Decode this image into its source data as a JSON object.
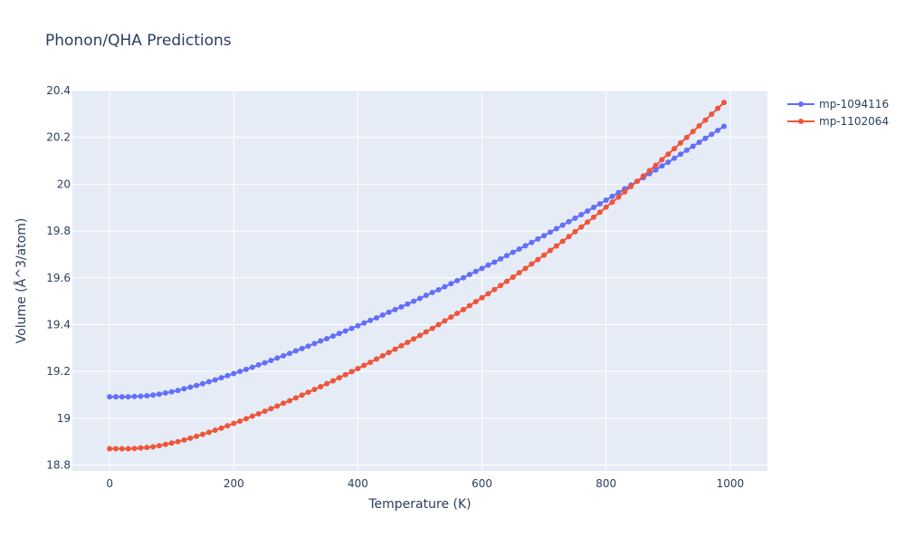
{
  "chart_data": {
    "type": "line",
    "title": "Phonon/QHA Predictions",
    "xlabel": "Temperature (K)",
    "ylabel": "Volume (Å^3/atom)",
    "xlim": [
      -60,
      1060
    ],
    "ylim": [
      18.775,
      20.4
    ],
    "xticks": [
      0,
      200,
      400,
      600,
      800,
      1000
    ],
    "xtick_labels": [
      "0",
      "200",
      "400",
      "600",
      "800",
      "1000"
    ],
    "yticks": [
      18.8,
      19.0,
      19.2,
      19.4,
      19.6,
      19.8,
      20.0,
      20.2,
      20.4
    ],
    "ytick_labels": [
      "18.8",
      "19",
      "19.2",
      "19.4",
      "19.6",
      "19.8",
      "20",
      "20.2",
      "20.4"
    ],
    "grid": true,
    "legend_position": "top-right",
    "x": [
      0,
      10,
      20,
      30,
      40,
      50,
      60,
      70,
      80,
      90,
      100,
      110,
      120,
      130,
      140,
      150,
      160,
      170,
      180,
      190,
      200,
      210,
      220,
      230,
      240,
      250,
      260,
      270,
      280,
      290,
      300,
      310,
      320,
      330,
      340,
      350,
      360,
      370,
      380,
      390,
      400,
      410,
      420,
      430,
      440,
      450,
      460,
      470,
      480,
      490,
      500,
      510,
      520,
      530,
      540,
      550,
      560,
      570,
      580,
      590,
      600,
      610,
      620,
      630,
      640,
      650,
      660,
      670,
      680,
      690,
      700,
      710,
      720,
      730,
      740,
      750,
      760,
      770,
      780,
      790,
      800,
      810,
      820,
      830,
      840,
      850,
      860,
      870,
      880,
      890,
      900,
      910,
      920,
      930,
      940,
      950,
      960,
      970,
      980,
      990
    ],
    "series": [
      {
        "name": "mp-1094116",
        "color": "#636efa",
        "values": [
          19.092,
          19.092,
          19.092,
          19.092,
          19.093,
          19.094,
          19.096,
          19.099,
          19.103,
          19.108,
          19.113,
          19.119,
          19.126,
          19.133,
          19.14,
          19.148,
          19.156,
          19.164,
          19.173,
          19.182,
          19.191,
          19.2,
          19.209,
          19.218,
          19.228,
          19.237,
          19.247,
          19.257,
          19.267,
          19.277,
          19.288,
          19.298,
          19.308,
          19.319,
          19.33,
          19.34,
          19.351,
          19.362,
          19.373,
          19.384,
          19.395,
          19.407,
          19.418,
          19.429,
          19.441,
          19.453,
          19.464,
          19.476,
          19.488,
          19.5,
          19.512,
          19.525,
          19.537,
          19.549,
          19.562,
          19.575,
          19.588,
          19.6,
          19.614,
          19.627,
          19.64,
          19.654,
          19.667,
          19.681,
          19.695,
          19.709,
          19.723,
          19.737,
          19.751,
          19.766,
          19.78,
          19.795,
          19.81,
          19.825,
          19.84,
          19.855,
          19.87,
          19.885,
          19.901,
          19.916,
          19.932,
          19.948,
          19.964,
          19.98,
          19.996,
          20.012,
          20.028,
          20.045,
          20.061,
          20.078,
          20.094,
          20.111,
          20.128,
          20.145,
          20.162,
          20.179,
          20.196,
          20.213,
          20.23,
          20.247
        ]
      },
      {
        "name": "mp-1102064",
        "color": "#ef553b",
        "values": [
          18.87,
          18.87,
          18.87,
          18.87,
          18.871,
          18.873,
          18.875,
          18.878,
          18.883,
          18.888,
          18.894,
          18.9,
          18.907,
          18.915,
          18.923,
          18.931,
          18.94,
          18.949,
          18.958,
          18.968,
          18.978,
          18.988,
          18.998,
          19.009,
          19.019,
          19.03,
          19.041,
          19.052,
          19.064,
          19.075,
          19.087,
          19.099,
          19.111,
          19.123,
          19.135,
          19.148,
          19.16,
          19.173,
          19.186,
          19.199,
          19.212,
          19.226,
          19.239,
          19.253,
          19.267,
          19.281,
          19.295,
          19.31,
          19.324,
          19.339,
          19.354,
          19.369,
          19.384,
          19.4,
          19.416,
          19.432,
          19.448,
          19.464,
          19.481,
          19.498,
          19.515,
          19.532,
          19.55,
          19.567,
          19.585,
          19.603,
          19.622,
          19.64,
          19.659,
          19.678,
          19.697,
          19.717,
          19.736,
          19.756,
          19.776,
          19.797,
          19.817,
          19.838,
          19.859,
          19.88,
          19.902,
          19.923,
          19.945,
          19.967,
          19.99,
          20.012,
          20.035,
          20.058,
          20.081,
          20.105,
          20.128,
          20.152,
          20.176,
          20.2,
          20.225,
          20.249,
          20.274,
          20.299,
          20.324,
          20.349
        ]
      }
    ]
  }
}
